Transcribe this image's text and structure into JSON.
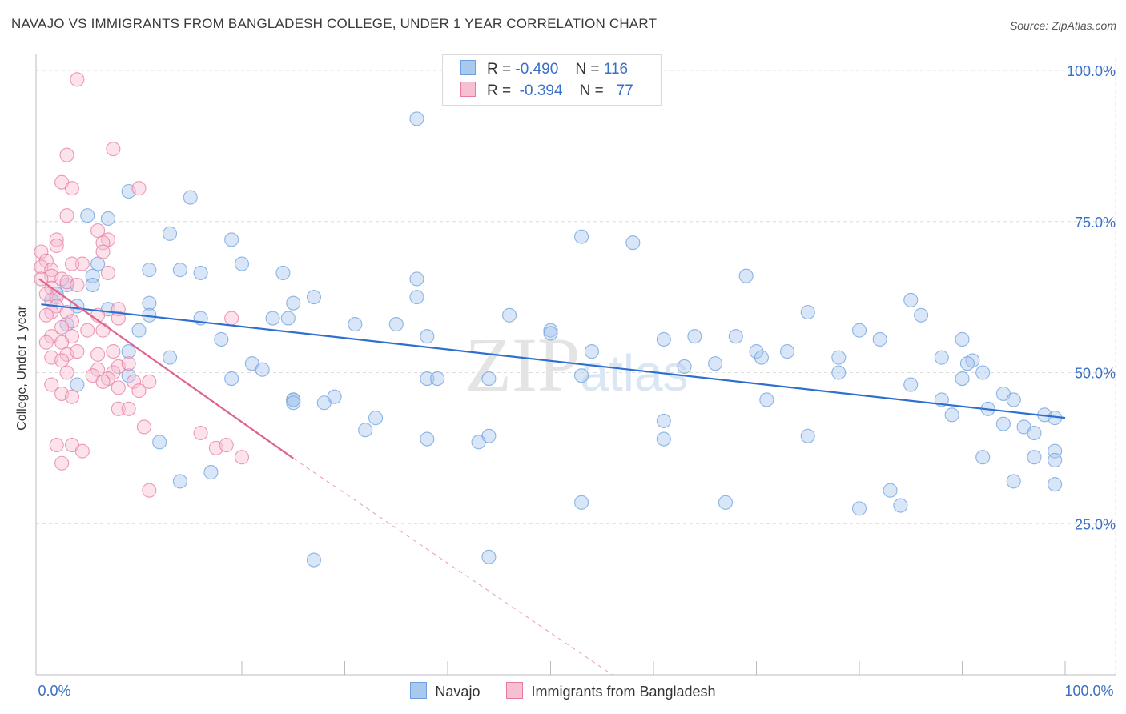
{
  "chart_data": {
    "type": "scatter",
    "title": "NAVAJO VS IMMIGRANTS FROM BANGLADESH COLLEGE, UNDER 1 YEAR CORRELATION CHART",
    "source": "Source: ZipAtlas.com",
    "ylabel": "College, Under 1 year",
    "xlim": [
      0,
      100
    ],
    "ylim": [
      0,
      100
    ],
    "x_tick_labels": [
      "0.0%",
      "100.0%"
    ],
    "y_tick_labels": [
      "25.0%",
      "50.0%",
      "75.0%",
      "100.0%"
    ],
    "y_ticks": [
      25,
      50,
      75,
      100
    ],
    "grid": true,
    "watermark": "ZIPatlas",
    "legend": [
      {
        "r_label": "R =",
        "r_value": "-0.490",
        "n_label": "N =",
        "n_value": "116"
      },
      {
        "r_label": "R =",
        "r_value": "-0.394",
        "n_label": "N =",
        "n_value": "77"
      }
    ],
    "series": [
      {
        "name": "Navajo",
        "color": "#6c9fde",
        "fill": "#a9c8ee",
        "trend": {
          "x0": 0.5,
          "y0": 61.3,
          "x1": 100,
          "y1": 42.5
        },
        "points": [
          [
            37,
            92
          ],
          [
            9,
            80
          ],
          [
            15,
            79
          ],
          [
            5,
            76
          ],
          [
            7,
            75.5
          ],
          [
            13,
            73
          ],
          [
            19,
            72
          ],
          [
            53,
            72.5
          ],
          [
            58,
            71.5
          ],
          [
            20,
            68
          ],
          [
            6,
            68
          ],
          [
            11,
            67
          ],
          [
            14,
            67
          ],
          [
            16,
            66.5
          ],
          [
            24,
            66.5
          ],
          [
            5.5,
            66
          ],
          [
            37,
            65.5
          ],
          [
            69,
            66
          ],
          [
            3,
            64.5
          ],
          [
            5.5,
            64.5
          ],
          [
            2,
            63
          ],
          [
            1.5,
            62
          ],
          [
            27,
            62.5
          ],
          [
            37,
            62.5
          ],
          [
            25,
            61.5
          ],
          [
            11,
            61.5
          ],
          [
            4,
            61
          ],
          [
            7,
            60.5
          ],
          [
            11,
            59.5
          ],
          [
            16,
            59
          ],
          [
            23,
            59
          ],
          [
            24.5,
            59
          ],
          [
            46,
            59.5
          ],
          [
            75,
            60
          ],
          [
            85,
            62
          ],
          [
            86,
            59.5
          ],
          [
            31,
            58
          ],
          [
            35,
            58
          ],
          [
            50,
            57
          ],
          [
            50,
            56.5
          ],
          [
            3,
            58
          ],
          [
            10,
            57
          ],
          [
            18,
            55.5
          ],
          [
            38,
            56
          ],
          [
            61,
            55.5
          ],
          [
            64,
            56
          ],
          [
            68,
            56
          ],
          [
            82,
            55.5
          ],
          [
            90,
            55.5
          ],
          [
            80,
            57
          ],
          [
            54,
            53.5
          ],
          [
            70,
            53.5
          ],
          [
            73,
            53.5
          ],
          [
            70.5,
            52.5
          ],
          [
            78,
            52.5
          ],
          [
            88,
            52.5
          ],
          [
            91,
            52
          ],
          [
            90.5,
            51.5
          ],
          [
            66,
            51.5
          ],
          [
            63,
            51
          ],
          [
            21,
            51.5
          ],
          [
            22,
            50.5
          ],
          [
            9,
            53.5
          ],
          [
            4,
            48
          ],
          [
            9,
            49.5
          ],
          [
            13,
            52.5
          ],
          [
            19,
            49
          ],
          [
            38,
            49
          ],
          [
            39,
            49
          ],
          [
            44,
            49
          ],
          [
            53,
            49.5
          ],
          [
            78,
            50
          ],
          [
            92,
            50
          ],
          [
            85,
            48
          ],
          [
            90,
            49
          ],
          [
            94,
            46.5
          ],
          [
            95,
            45.5
          ],
          [
            88,
            45.5
          ],
          [
            71,
            45.5
          ],
          [
            25,
            45.5
          ],
          [
            25,
            45.5
          ],
          [
            29,
            46
          ],
          [
            25,
            45
          ],
          [
            33,
            42.5
          ],
          [
            28,
            45
          ],
          [
            32,
            40.5
          ],
          [
            44,
            39.5
          ],
          [
            61,
            42
          ],
          [
            61,
            39
          ],
          [
            94,
            41.5
          ],
          [
            96,
            41
          ],
          [
            92.5,
            44
          ],
          [
            89,
            43
          ],
          [
            98,
            43
          ],
          [
            99,
            42.5
          ],
          [
            97,
            40
          ],
          [
            99,
            37
          ],
          [
            75,
            39.5
          ],
          [
            38,
            39
          ],
          [
            43,
            38.5
          ],
          [
            12,
            38.5
          ],
          [
            14,
            32
          ],
          [
            17,
            33.5
          ],
          [
            92,
            36
          ],
          [
            97,
            36
          ],
          [
            99,
            35.5
          ],
          [
            95,
            32
          ],
          [
            99,
            31.5
          ],
          [
            83,
            30.5
          ],
          [
            67,
            28.5
          ],
          [
            53,
            28.5
          ],
          [
            84,
            28
          ],
          [
            80,
            27.5
          ],
          [
            44,
            19.5
          ],
          [
            27,
            19
          ]
        ]
      },
      {
        "name": "Immigrants from Bangladesh",
        "color": "#e87aa0",
        "fill": "#f7bfd2",
        "trend": {
          "x0": 0.3,
          "y0": 65.5,
          "x1": 25,
          "y1": 35.8
        },
        "trend_dashed": {
          "x0": 25,
          "y0": 35.8,
          "x1": 56,
          "y1": -2
        },
        "points": [
          [
            4,
            98.5
          ],
          [
            7.5,
            87
          ],
          [
            3,
            86
          ],
          [
            2.5,
            81.5
          ],
          [
            3.5,
            80.5
          ],
          [
            10,
            80.5
          ],
          [
            3,
            76
          ],
          [
            6,
            73.5
          ],
          [
            2,
            72
          ],
          [
            7,
            72
          ],
          [
            6.5,
            71.5
          ],
          [
            2,
            71
          ],
          [
            0.5,
            70
          ],
          [
            6.5,
            70
          ],
          [
            1,
            68.5
          ],
          [
            0.5,
            67.5
          ],
          [
            1.5,
            67
          ],
          [
            4.5,
            68
          ],
          [
            3.5,
            68
          ],
          [
            7,
            66.5
          ],
          [
            1.5,
            66
          ],
          [
            0.5,
            65.5
          ],
          [
            2.5,
            65.5
          ],
          [
            3,
            65
          ],
          [
            4,
            64.5
          ],
          [
            1.5,
            64
          ],
          [
            1,
            63
          ],
          [
            2,
            62.5
          ],
          [
            8,
            60.5
          ],
          [
            2,
            61
          ],
          [
            1.5,
            60
          ],
          [
            1,
            59.5
          ],
          [
            3,
            60
          ],
          [
            8,
            59
          ],
          [
            3.5,
            58.5
          ],
          [
            2.5,
            57.5
          ],
          [
            5,
            57
          ],
          [
            6.5,
            57
          ],
          [
            1.5,
            56
          ],
          [
            3.5,
            56
          ],
          [
            1,
            55
          ],
          [
            2.5,
            55
          ],
          [
            3,
            53
          ],
          [
            4,
            53.5
          ],
          [
            7.5,
            53.5
          ],
          [
            6,
            53
          ],
          [
            1.5,
            52.5
          ],
          [
            2.5,
            52
          ],
          [
            8,
            51
          ],
          [
            9,
            51.5
          ],
          [
            6,
            50.5
          ],
          [
            3,
            50
          ],
          [
            5.5,
            49.5
          ],
          [
            7.5,
            50
          ],
          [
            7,
            49
          ],
          [
            6.5,
            48.5
          ],
          [
            11,
            48.5
          ],
          [
            9.5,
            48.5
          ],
          [
            1.5,
            48
          ],
          [
            8,
            47.5
          ],
          [
            2.5,
            46.5
          ],
          [
            3.5,
            46
          ],
          [
            8,
            44
          ],
          [
            9,
            44
          ],
          [
            10.5,
            41
          ],
          [
            16,
            40
          ],
          [
            17.5,
            37.5
          ],
          [
            2,
            38
          ],
          [
            3.5,
            38
          ],
          [
            4.5,
            37
          ],
          [
            18.5,
            38
          ],
          [
            20,
            36
          ],
          [
            2.5,
            35
          ],
          [
            11,
            30.5
          ],
          [
            19,
            59
          ],
          [
            6,
            59.5
          ],
          [
            10,
            47
          ]
        ]
      }
    ]
  },
  "legend_bottom": [
    "Navajo",
    "Immigrants from Bangladesh"
  ]
}
